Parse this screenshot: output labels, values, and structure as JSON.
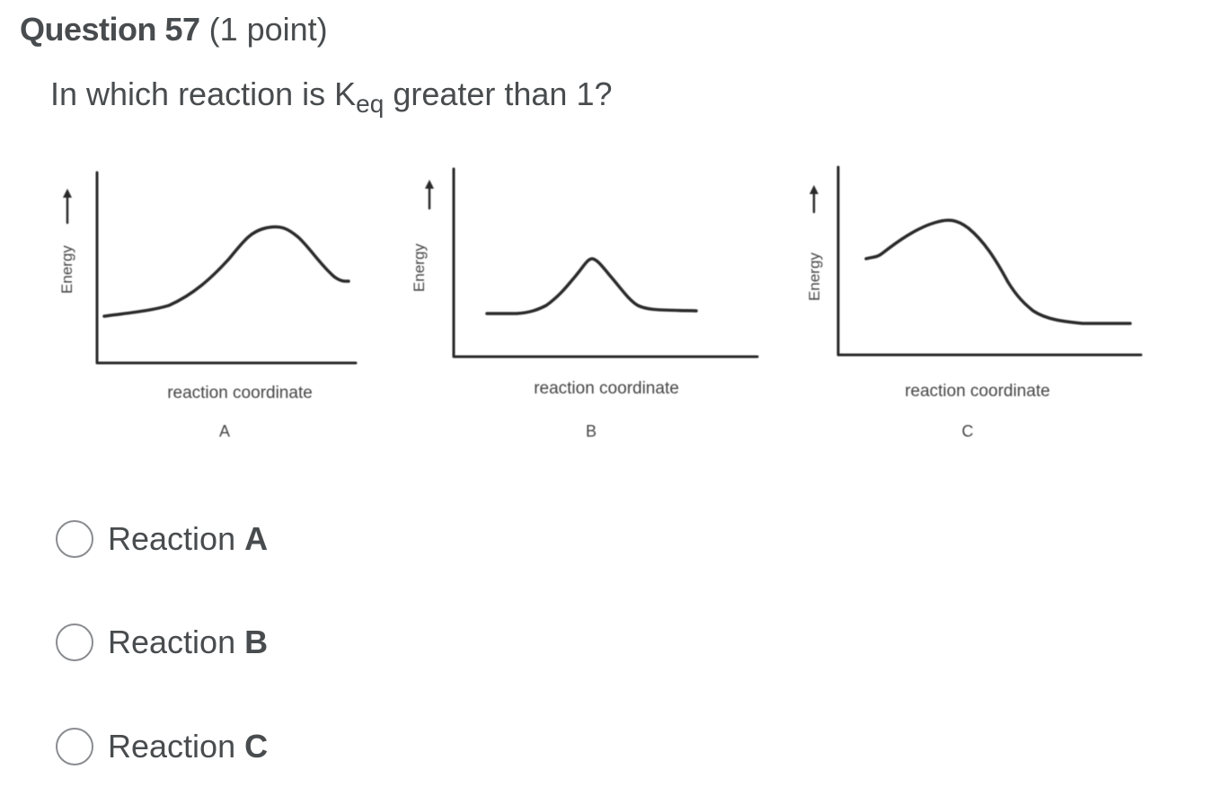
{
  "question": {
    "number_label": "Question 57",
    "points_label": "(1 point)",
    "prompt_before": "In which reaction is K",
    "prompt_subscript": "eq",
    "prompt_after": " greater than 1?"
  },
  "diagrams": {
    "y_axis_label": "Energy",
    "x_axis_label": "reaction coordinate",
    "panels": [
      {
        "letter": "A"
      },
      {
        "letter": "B"
      },
      {
        "letter": "C"
      }
    ]
  },
  "choices": [
    {
      "prefix": "Reaction ",
      "letter": "A"
    },
    {
      "prefix": "Reaction ",
      "letter": "B"
    },
    {
      "prefix": "Reaction ",
      "letter": "C"
    }
  ],
  "colors": {
    "text": "#494c4e",
    "radio_border": "#8a8c8f",
    "curve": "#2a2a2a"
  }
}
